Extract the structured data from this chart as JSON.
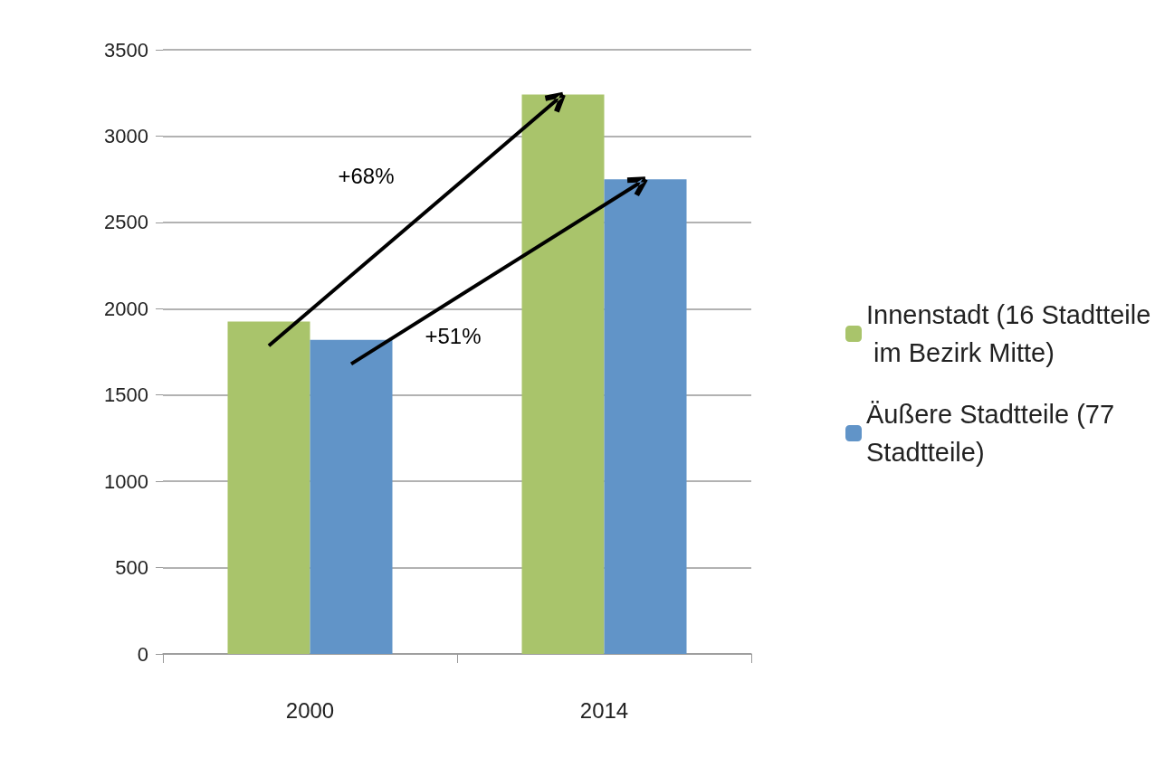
{
  "chart_data": {
    "type": "bar",
    "categories": [
      "2000",
      "2014"
    ],
    "series": [
      {
        "name": "Innenstadt (16 Stadtteile im Bezirk Mitte)",
        "color": "#a9c46b",
        "values": [
          1925,
          3240
        ]
      },
      {
        "name": "Äußere Stadtteile (77 Stadtteile)",
        "color": "#6194c8",
        "values": [
          1820,
          2750
        ]
      }
    ],
    "ylim": [
      0,
      3500
    ],
    "yticks": [
      0,
      500,
      1000,
      1500,
      2000,
      2500,
      3000,
      3500
    ],
    "grid": "y",
    "legend": "right",
    "annotations": [
      "+68%",
      "+51%"
    ]
  }
}
